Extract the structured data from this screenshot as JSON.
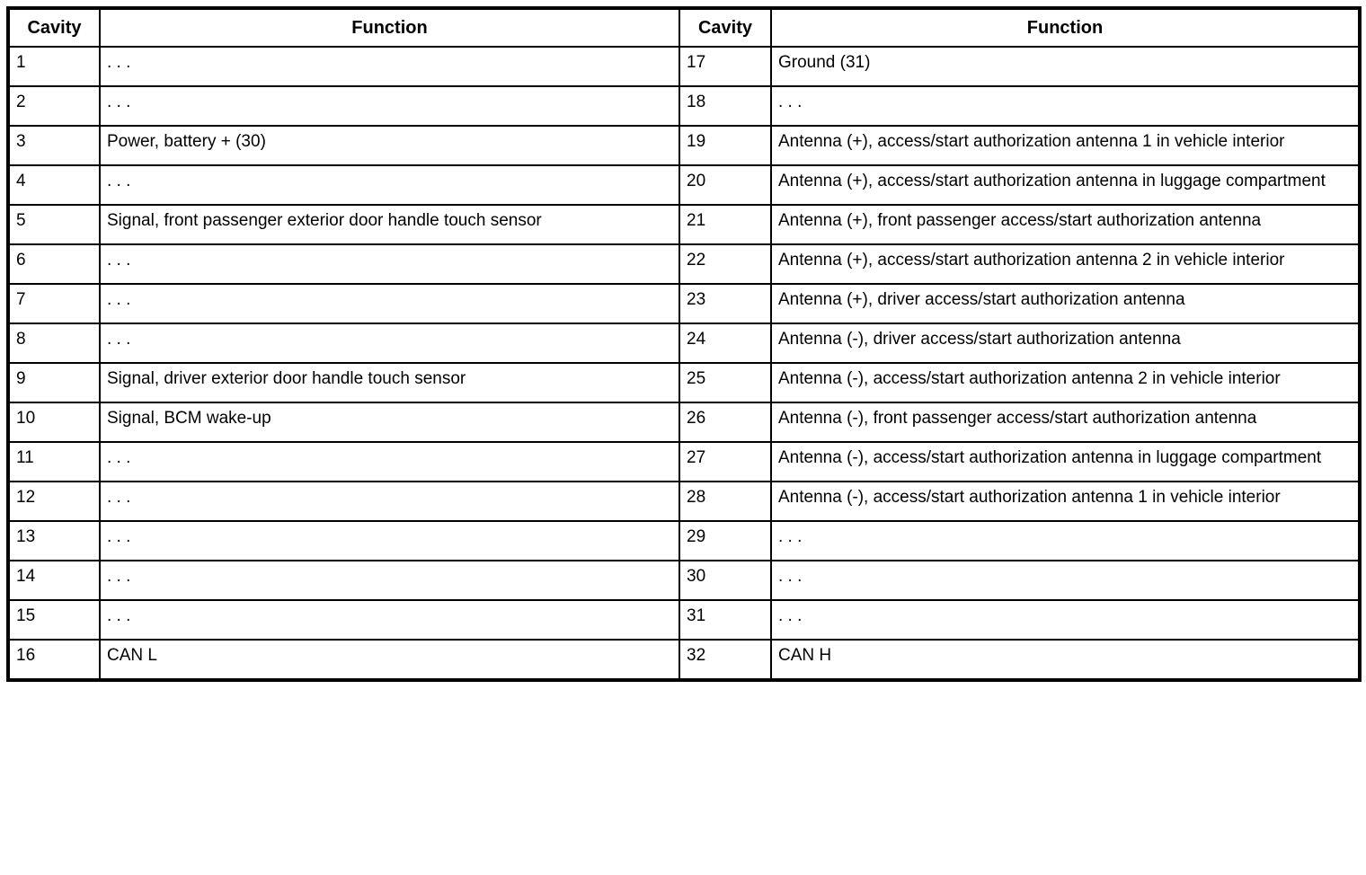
{
  "header": {
    "cavity_label": "Cavity",
    "function_label": "Function"
  },
  "rows": [
    {
      "left_cavity": "1",
      "left_function": ". . .",
      "right_cavity": "17",
      "right_function": "Ground (31)"
    },
    {
      "left_cavity": "2",
      "left_function": ". . .",
      "right_cavity": "18",
      "right_function": ". . ."
    },
    {
      "left_cavity": "3",
      "left_function": "Power, battery + (30)",
      "right_cavity": "19",
      "right_function": "Antenna (+), access/start authorization antenna 1 in vehicle interior"
    },
    {
      "left_cavity": "4",
      "left_function": ". . .",
      "right_cavity": "20",
      "right_function": "Antenna (+), access/start authorization antenna in luggage compartment"
    },
    {
      "left_cavity": "5",
      "left_function": "Signal, front passenger exterior door handle touch sensor",
      "right_cavity": "21",
      "right_function": "Antenna (+), front passenger access/start authorization antenna"
    },
    {
      "left_cavity": "6",
      "left_function": ". . .",
      "right_cavity": "22",
      "right_function": "Antenna (+), access/start authorization antenna 2 in vehicle interior"
    },
    {
      "left_cavity": "7",
      "left_function": ". . .",
      "right_cavity": "23",
      "right_function": "Antenna (+), driver access/start authorization antenna"
    },
    {
      "left_cavity": "8",
      "left_function": ". . .",
      "right_cavity": "24",
      "right_function": "Antenna (-), driver access/start authorization antenna"
    },
    {
      "left_cavity": "9",
      "left_function": "Signal, driver exterior door handle touch sensor",
      "right_cavity": "25",
      "right_function": "Antenna (-), access/start authorization antenna 2 in vehicle interior"
    },
    {
      "left_cavity": "10",
      "left_function": "Signal, BCM wake-up",
      "right_cavity": "26",
      "right_function": "Antenna (-), front passenger access/start authorization antenna"
    },
    {
      "left_cavity": "11",
      "left_function": ". . .",
      "right_cavity": "27",
      "right_function": "Antenna (-), access/start authorization antenna in luggage compartment"
    },
    {
      "left_cavity": "12",
      "left_function": ". . .",
      "right_cavity": "28",
      "right_function": "Antenna (-), access/start authorization antenna 1 in vehicle interior"
    },
    {
      "left_cavity": "13",
      "left_function": ". . .",
      "right_cavity": "29",
      "right_function": ". . ."
    },
    {
      "left_cavity": "14",
      "left_function": ". . .",
      "right_cavity": "30",
      "right_function": ". . ."
    },
    {
      "left_cavity": "15",
      "left_function": ". . .",
      "right_cavity": "31",
      "right_function": ". . ."
    },
    {
      "left_cavity": "16",
      "left_function": "CAN L",
      "right_cavity": "32",
      "right_function": "CAN H"
    }
  ]
}
